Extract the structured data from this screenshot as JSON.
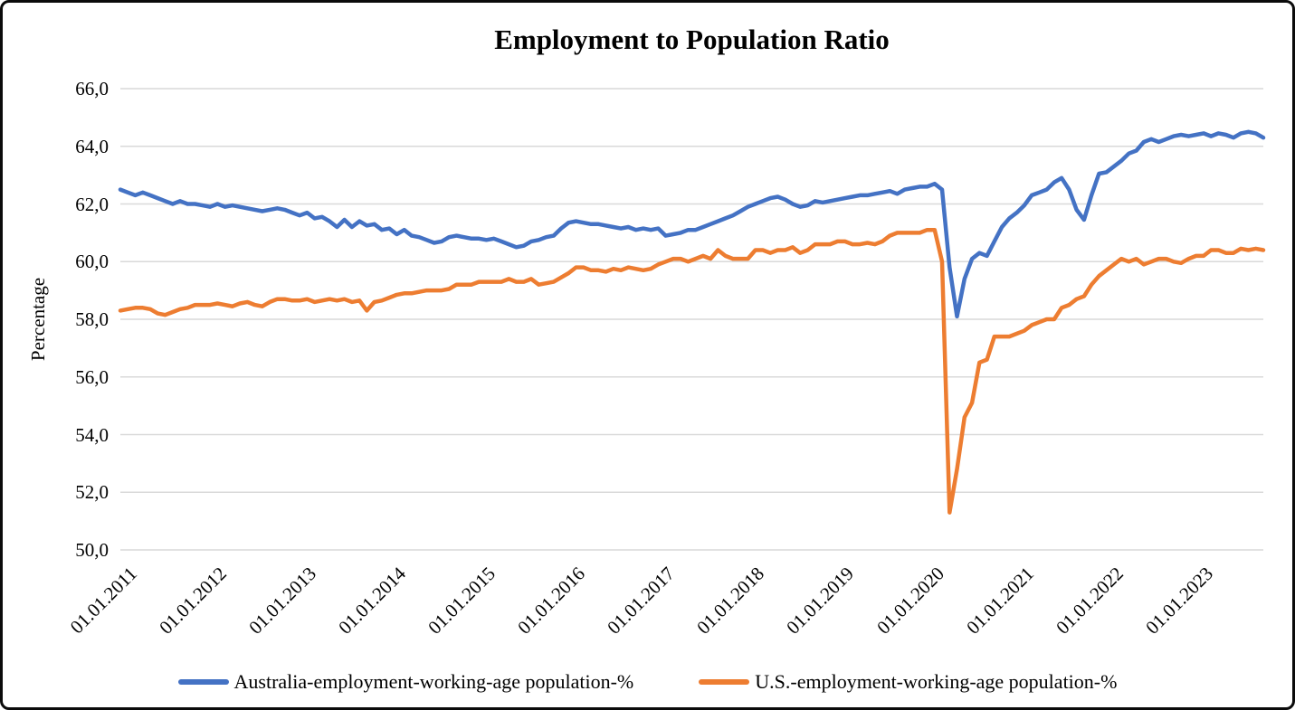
{
  "frame": {
    "background": "#ffffff",
    "border_color": "#0b0b0b"
  },
  "chart_data": {
    "type": "line",
    "title": "Employment to Population Ratio",
    "ylabel": "Percentage",
    "x_frequency": "monthly",
    "x_start": "2011-01",
    "x_end": "2023-10",
    "months": [
      "2011-01",
      "2011-02",
      "2011-03",
      "2011-04",
      "2011-05",
      "2011-06",
      "2011-07",
      "2011-08",
      "2011-09",
      "2011-10",
      "2011-11",
      "2011-12",
      "2012-01",
      "2012-02",
      "2012-03",
      "2012-04",
      "2012-05",
      "2012-06",
      "2012-07",
      "2012-08",
      "2012-09",
      "2012-10",
      "2012-11",
      "2012-12",
      "2013-01",
      "2013-02",
      "2013-03",
      "2013-04",
      "2013-05",
      "2013-06",
      "2013-07",
      "2013-08",
      "2013-09",
      "2013-10",
      "2013-11",
      "2013-12",
      "2014-01",
      "2014-02",
      "2014-03",
      "2014-04",
      "2014-05",
      "2014-06",
      "2014-07",
      "2014-08",
      "2014-09",
      "2014-10",
      "2014-11",
      "2014-12",
      "2015-01",
      "2015-02",
      "2015-03",
      "2015-04",
      "2015-05",
      "2015-06",
      "2015-07",
      "2015-08",
      "2015-09",
      "2015-10",
      "2015-11",
      "2015-12",
      "2016-01",
      "2016-02",
      "2016-03",
      "2016-04",
      "2016-05",
      "2016-06",
      "2016-07",
      "2016-08",
      "2016-09",
      "2016-10",
      "2016-11",
      "2016-12",
      "2017-01",
      "2017-02",
      "2017-03",
      "2017-04",
      "2017-05",
      "2017-06",
      "2017-07",
      "2017-08",
      "2017-09",
      "2017-10",
      "2017-11",
      "2017-12",
      "2018-01",
      "2018-02",
      "2018-03",
      "2018-04",
      "2018-05",
      "2018-06",
      "2018-07",
      "2018-08",
      "2018-09",
      "2018-10",
      "2018-11",
      "2018-12",
      "2019-01",
      "2019-02",
      "2019-03",
      "2019-04",
      "2019-05",
      "2019-06",
      "2019-07",
      "2019-08",
      "2019-09",
      "2019-10",
      "2019-11",
      "2019-12",
      "2020-01",
      "2020-02",
      "2020-03",
      "2020-04",
      "2020-05",
      "2020-06",
      "2020-07",
      "2020-08",
      "2020-09",
      "2020-10",
      "2020-11",
      "2020-12",
      "2021-01",
      "2021-02",
      "2021-03",
      "2021-04",
      "2021-05",
      "2021-06",
      "2021-07",
      "2021-08",
      "2021-09",
      "2021-10",
      "2021-11",
      "2021-12",
      "2022-01",
      "2022-02",
      "2022-03",
      "2022-04",
      "2022-05",
      "2022-06",
      "2022-07",
      "2022-08",
      "2022-09",
      "2022-10",
      "2022-11",
      "2022-12",
      "2023-01",
      "2023-02",
      "2023-03",
      "2023-04",
      "2023-05",
      "2023-06",
      "2023-07",
      "2023-08",
      "2023-09",
      "2023-10"
    ],
    "series": [
      {
        "name": "Australia-employment-working-age population-%",
        "color": "#4472C4",
        "values": [
          62.5,
          62.4,
          62.3,
          62.4,
          62.3,
          62.2,
          62.1,
          62.0,
          62.1,
          62.0,
          62.0,
          61.95,
          61.9,
          62.0,
          61.9,
          61.95,
          61.9,
          61.85,
          61.8,
          61.75,
          61.8,
          61.85,
          61.8,
          61.7,
          61.6,
          61.7,
          61.5,
          61.55,
          61.4,
          61.2,
          61.45,
          61.2,
          61.4,
          61.25,
          61.3,
          61.1,
          61.15,
          60.95,
          61.1,
          60.9,
          60.85,
          60.75,
          60.65,
          60.7,
          60.85,
          60.9,
          60.85,
          60.8,
          60.8,
          60.75,
          60.8,
          60.7,
          60.6,
          60.5,
          60.55,
          60.7,
          60.75,
          60.85,
          60.9,
          61.15,
          61.35,
          61.4,
          61.35,
          61.3,
          61.3,
          61.25,
          61.2,
          61.15,
          61.2,
          61.1,
          61.15,
          61.1,
          61.15,
          60.9,
          60.95,
          61.0,
          61.1,
          61.1,
          61.2,
          61.3,
          61.4,
          61.5,
          61.6,
          61.75,
          61.9,
          62.0,
          62.1,
          62.2,
          62.25,
          62.15,
          62.0,
          61.9,
          61.95,
          62.1,
          62.05,
          62.1,
          62.15,
          62.2,
          62.25,
          62.3,
          62.3,
          62.35,
          62.4,
          62.45,
          62.35,
          62.5,
          62.55,
          62.6,
          62.6,
          62.7,
          62.5,
          59.8,
          58.1,
          59.4,
          60.1,
          60.3,
          60.2,
          60.7,
          61.2,
          61.5,
          61.7,
          61.95,
          62.3,
          62.4,
          62.5,
          62.75,
          62.9,
          62.5,
          61.8,
          61.45,
          62.3,
          63.05,
          63.1,
          63.3,
          63.5,
          63.75,
          63.85,
          64.15,
          64.25,
          64.15,
          64.25,
          64.35,
          64.4,
          64.35,
          64.4,
          64.45,
          64.35,
          64.45,
          64.4,
          64.3,
          64.45,
          64.5,
          64.45,
          64.3
        ]
      },
      {
        "name": "U.S.-employment-working-age population-%",
        "color": "#ED7D31",
        "values": [
          58.3,
          58.35,
          58.4,
          58.4,
          58.35,
          58.2,
          58.15,
          58.25,
          58.35,
          58.4,
          58.5,
          58.5,
          58.5,
          58.55,
          58.5,
          58.45,
          58.55,
          58.6,
          58.5,
          58.45,
          58.6,
          58.7,
          58.7,
          58.65,
          58.65,
          58.7,
          58.6,
          58.65,
          58.7,
          58.65,
          58.7,
          58.6,
          58.65,
          58.3,
          58.6,
          58.65,
          58.75,
          58.85,
          58.9,
          58.9,
          58.95,
          59.0,
          59.0,
          59.0,
          59.05,
          59.2,
          59.2,
          59.2,
          59.3,
          59.3,
          59.3,
          59.3,
          59.4,
          59.3,
          59.3,
          59.4,
          59.2,
          59.25,
          59.3,
          59.45,
          59.6,
          59.8,
          59.8,
          59.7,
          59.7,
          59.65,
          59.75,
          59.7,
          59.8,
          59.75,
          59.7,
          59.75,
          59.9,
          60.0,
          60.1,
          60.1,
          60.0,
          60.1,
          60.2,
          60.1,
          60.4,
          60.2,
          60.1,
          60.1,
          60.1,
          60.4,
          60.4,
          60.3,
          60.4,
          60.4,
          60.5,
          60.3,
          60.4,
          60.6,
          60.6,
          60.6,
          60.7,
          60.7,
          60.6,
          60.6,
          60.65,
          60.6,
          60.7,
          60.9,
          61.0,
          61.0,
          61.0,
          61.0,
          61.1,
          61.1,
          60.0,
          51.3,
          52.8,
          54.6,
          55.1,
          56.5,
          56.6,
          57.4,
          57.4,
          57.4,
          57.5,
          57.6,
          57.8,
          57.9,
          58.0,
          58.0,
          58.4,
          58.5,
          58.7,
          58.8,
          59.2,
          59.5,
          59.7,
          59.9,
          60.1,
          60.0,
          60.1,
          59.9,
          60.0,
          60.1,
          60.1,
          60.0,
          59.95,
          60.1,
          60.2,
          60.2,
          60.4,
          60.4,
          60.3,
          60.3,
          60.45,
          60.4,
          60.45,
          60.4
        ]
      }
    ],
    "y_axis": {
      "min": 50.0,
      "max": 66.0,
      "tick_step": 2.0,
      "decimal_separator": ",",
      "ticks": [
        {
          "value": 66.0,
          "label": "66,0"
        },
        {
          "value": 64.0,
          "label": "64,0"
        },
        {
          "value": 62.0,
          "label": "62,0"
        },
        {
          "value": 60.0,
          "label": "60,0"
        },
        {
          "value": 58.0,
          "label": "58,0"
        },
        {
          "value": 56.0,
          "label": "56,0"
        },
        {
          "value": 54.0,
          "label": "54,0"
        },
        {
          "value": 52.0,
          "label": "52,0"
        },
        {
          "value": 50.0,
          "label": "50,0"
        }
      ]
    },
    "x_axis": {
      "ticks": [
        {
          "month_index": 0,
          "label": "01.01.2011"
        },
        {
          "month_index": 12,
          "label": "01.01.2012"
        },
        {
          "month_index": 24,
          "label": "01.01.2013"
        },
        {
          "month_index": 36,
          "label": "01.01.2014"
        },
        {
          "month_index": 48,
          "label": "01.01.2015"
        },
        {
          "month_index": 60,
          "label": "01.01.2016"
        },
        {
          "month_index": 72,
          "label": "01.01.2017"
        },
        {
          "month_index": 84,
          "label": "01.01.2018"
        },
        {
          "month_index": 96,
          "label": "01.01.2019"
        },
        {
          "month_index": 108,
          "label": "01.01.2020"
        },
        {
          "month_index": 120,
          "label": "01.01.2021"
        },
        {
          "month_index": 132,
          "label": "01.01.2022"
        },
        {
          "month_index": 144,
          "label": "01.01.2023"
        }
      ]
    },
    "grid": {
      "show_horizontal": true,
      "show_vertical": false,
      "color": "#D9D9D9"
    },
    "legend": {
      "position": "bottom"
    }
  }
}
